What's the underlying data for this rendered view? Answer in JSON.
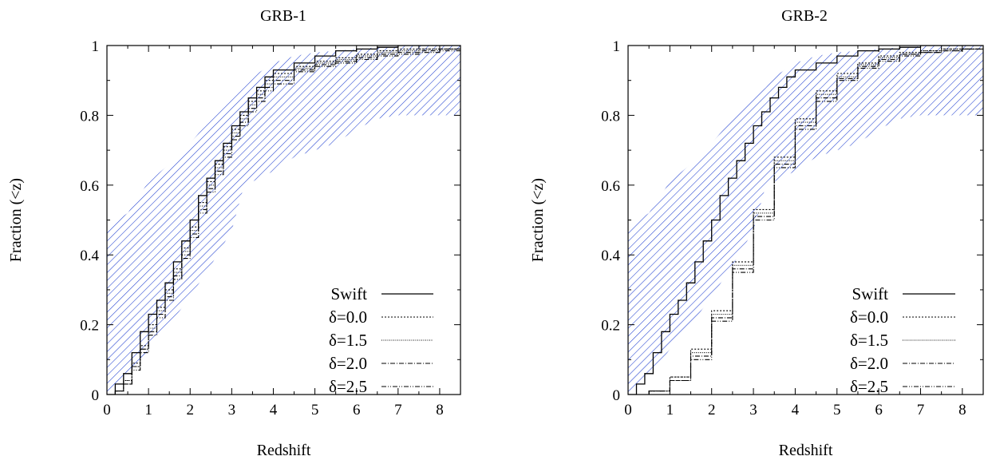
{
  "chart_data": [
    {
      "type": "line",
      "title": "GRB-1",
      "xlabel": "Redshift",
      "ylabel": "Fraction (<z)",
      "xlim": [
        0,
        8.5
      ],
      "ylim": [
        0,
        1
      ],
      "xticks": [
        "0",
        "1",
        "2",
        "3",
        "4",
        "5",
        "6",
        "7",
        "8"
      ],
      "yticks": [
        "0",
        "0.2",
        "0.4",
        "0.6",
        "0.8",
        "1"
      ],
      "grid": false,
      "legend": "bottom-right",
      "band": {
        "description": "hatched confidence region",
        "color": "#1f3fd0",
        "x": [
          0,
          0.5,
          1.0,
          1.5,
          2.0,
          2.5,
          3.0,
          3.3,
          3.5,
          4.0,
          4.5,
          5.0,
          5.5,
          6.0,
          6.5,
          7.0,
          7.5,
          8.0,
          8.5
        ],
        "upper": [
          0.48,
          0.52,
          0.61,
          0.66,
          0.72,
          0.79,
          0.85,
          0.88,
          0.91,
          0.95,
          0.97,
          0.98,
          0.985,
          0.99,
          0.995,
          0.998,
          1.0,
          1.0,
          1.0
        ],
        "lower": [
          0.0,
          0.05,
          0.13,
          0.2,
          0.28,
          0.37,
          0.47,
          0.6,
          0.61,
          0.64,
          0.68,
          0.7,
          0.72,
          0.76,
          0.79,
          0.8,
          0.8,
          0.8,
          0.8
        ]
      },
      "series": [
        {
          "name": "Swift",
          "dash": "",
          "x": [
            0,
            0.2,
            0.4,
            0.6,
            0.8,
            1.0,
            1.2,
            1.4,
            1.6,
            1.8,
            2.0,
            2.2,
            2.4,
            2.6,
            2.8,
            3.0,
            3.2,
            3.4,
            3.6,
            3.8,
            4.0,
            4.5,
            5.0,
            5.5,
            6.0,
            6.5,
            7.0,
            8.0,
            8.5
          ],
          "y": [
            0.0,
            0.03,
            0.06,
            0.12,
            0.18,
            0.23,
            0.27,
            0.32,
            0.38,
            0.44,
            0.5,
            0.57,
            0.62,
            0.67,
            0.72,
            0.77,
            0.81,
            0.85,
            0.88,
            0.91,
            0.93,
            0.95,
            0.97,
            0.985,
            0.99,
            0.995,
            1.0,
            1.0,
            1.0
          ]
        },
        {
          "name": "δ=0.0",
          "dash": "2 2",
          "x": [
            0,
            0.2,
            0.4,
            0.6,
            0.8,
            1.0,
            1.2,
            1.4,
            1.6,
            1.8,
            2.0,
            2.2,
            2.4,
            2.6,
            2.8,
            3.0,
            3.2,
            3.4,
            3.6,
            3.8,
            4.0,
            4.5,
            5.0,
            5.5,
            6.0,
            6.5,
            7.0,
            7.5,
            8.0,
            8.5
          ],
          "y": [
            0.0,
            0.01,
            0.04,
            0.09,
            0.14,
            0.2,
            0.25,
            0.3,
            0.36,
            0.42,
            0.48,
            0.55,
            0.61,
            0.66,
            0.71,
            0.76,
            0.8,
            0.84,
            0.87,
            0.9,
            0.92,
            0.94,
            0.955,
            0.965,
            0.975,
            0.985,
            0.99,
            0.99,
            0.99,
            0.99
          ]
        },
        {
          "name": "δ=1.5",
          "dash": "1 1.5",
          "x": [
            0,
            0.2,
            0.4,
            0.6,
            0.8,
            1.0,
            1.2,
            1.4,
            1.6,
            1.8,
            2.0,
            2.2,
            2.4,
            2.6,
            2.8,
            3.0,
            3.2,
            3.4,
            3.6,
            3.8,
            4.0,
            4.5,
            5.0,
            5.5,
            6.0,
            6.5,
            7.0,
            7.5,
            8.0,
            8.5
          ],
          "y": [
            0.0,
            0.01,
            0.04,
            0.08,
            0.13,
            0.19,
            0.24,
            0.29,
            0.35,
            0.41,
            0.47,
            0.54,
            0.6,
            0.65,
            0.7,
            0.75,
            0.79,
            0.83,
            0.86,
            0.89,
            0.91,
            0.935,
            0.95,
            0.96,
            0.97,
            0.98,
            0.985,
            0.99,
            0.99,
            0.99
          ]
        },
        {
          "name": "δ=2.0",
          "dash": "6 2 1 2",
          "x": [
            0,
            0.2,
            0.4,
            0.6,
            0.8,
            1.0,
            1.2,
            1.4,
            1.6,
            1.8,
            2.0,
            2.2,
            2.4,
            2.6,
            2.8,
            3.0,
            3.2,
            3.4,
            3.6,
            3.8,
            4.0,
            4.5,
            5.0,
            5.5,
            6.0,
            6.5,
            7.0,
            7.5,
            8.0,
            8.5
          ],
          "y": [
            0.0,
            0.01,
            0.03,
            0.08,
            0.13,
            0.18,
            0.23,
            0.28,
            0.34,
            0.4,
            0.46,
            0.53,
            0.59,
            0.64,
            0.69,
            0.74,
            0.78,
            0.82,
            0.85,
            0.88,
            0.9,
            0.93,
            0.945,
            0.955,
            0.965,
            0.975,
            0.98,
            0.985,
            0.99,
            0.99
          ]
        },
        {
          "name": "δ=2.5",
          "dash": "6 2 1 2 1 2",
          "x": [
            0,
            0.2,
            0.4,
            0.6,
            0.8,
            1.0,
            1.2,
            1.4,
            1.6,
            1.8,
            2.0,
            2.2,
            2.4,
            2.6,
            2.8,
            3.0,
            3.2,
            3.4,
            3.6,
            3.8,
            4.0,
            4.5,
            5.0,
            5.5,
            6.0,
            6.5,
            7.0,
            7.5,
            8.0,
            8.5
          ],
          "y": [
            0.0,
            0.01,
            0.03,
            0.07,
            0.12,
            0.17,
            0.22,
            0.27,
            0.33,
            0.39,
            0.45,
            0.52,
            0.58,
            0.63,
            0.68,
            0.73,
            0.77,
            0.81,
            0.84,
            0.87,
            0.89,
            0.925,
            0.94,
            0.95,
            0.96,
            0.97,
            0.975,
            0.98,
            0.985,
            0.99
          ]
        }
      ]
    },
    {
      "type": "line",
      "title": "GRB-2",
      "xlabel": "Redshift",
      "ylabel": "Fraction (<z)",
      "xlim": [
        0,
        8.5
      ],
      "ylim": [
        0,
        1
      ],
      "xticks": [
        "0",
        "1",
        "2",
        "3",
        "4",
        "5",
        "6",
        "7",
        "8"
      ],
      "yticks": [
        "0",
        "0.2",
        "0.4",
        "0.6",
        "0.8",
        "1"
      ],
      "grid": false,
      "legend": "bottom-right",
      "band": {
        "description": "hatched confidence region",
        "color": "#1f3fd0",
        "x": [
          0,
          0.5,
          1.0,
          1.5,
          2.0,
          2.5,
          3.0,
          3.3,
          3.5,
          4.0,
          4.5,
          5.0,
          5.5,
          6.0,
          6.5,
          7.0,
          7.5,
          8.0,
          8.5
        ],
        "upper": [
          0.48,
          0.52,
          0.61,
          0.66,
          0.72,
          0.79,
          0.85,
          0.88,
          0.91,
          0.95,
          0.97,
          0.98,
          0.985,
          0.99,
          0.995,
          0.998,
          1.0,
          1.0,
          1.0
        ],
        "lower": [
          0.0,
          0.05,
          0.13,
          0.2,
          0.28,
          0.37,
          0.47,
          0.6,
          0.61,
          0.64,
          0.68,
          0.7,
          0.72,
          0.76,
          0.79,
          0.8,
          0.8,
          0.8,
          0.8
        ]
      },
      "series": [
        {
          "name": "Swift",
          "dash": "",
          "x": [
            0,
            0.2,
            0.4,
            0.6,
            0.8,
            1.0,
            1.2,
            1.4,
            1.6,
            1.8,
            2.0,
            2.2,
            2.4,
            2.6,
            2.8,
            3.0,
            3.2,
            3.4,
            3.6,
            3.8,
            4.0,
            4.5,
            5.0,
            5.5,
            6.0,
            6.5,
            7.0,
            8.0,
            8.5
          ],
          "y": [
            0.0,
            0.03,
            0.06,
            0.12,
            0.18,
            0.23,
            0.27,
            0.32,
            0.38,
            0.44,
            0.5,
            0.57,
            0.62,
            0.67,
            0.72,
            0.77,
            0.81,
            0.85,
            0.88,
            0.91,
            0.93,
            0.95,
            0.97,
            0.985,
            0.99,
            0.995,
            1.0,
            1.0,
            1.0
          ]
        },
        {
          "name": "δ=0.0",
          "dash": "2 2",
          "x": [
            0,
            0.5,
            1.0,
            1.5,
            2.0,
            2.5,
            3.0,
            3.5,
            4.0,
            4.5,
            5.0,
            5.5,
            6.0,
            6.5,
            7.0,
            7.5,
            8.0,
            8.5
          ],
          "y": [
            0.0,
            0.01,
            0.05,
            0.13,
            0.24,
            0.38,
            0.53,
            0.68,
            0.79,
            0.87,
            0.92,
            0.95,
            0.97,
            0.98,
            0.985,
            0.99,
            0.99,
            0.99
          ]
        },
        {
          "name": "δ=1.5",
          "dash": "1 1.5",
          "x": [
            0,
            0.5,
            1.0,
            1.5,
            2.0,
            2.5,
            3.0,
            3.5,
            4.0,
            4.5,
            5.0,
            5.5,
            6.0,
            6.5,
            7.0,
            7.5,
            8.0,
            8.5
          ],
          "y": [
            0.0,
            0.01,
            0.05,
            0.12,
            0.23,
            0.37,
            0.52,
            0.67,
            0.78,
            0.86,
            0.91,
            0.945,
            0.965,
            0.975,
            0.985,
            0.99,
            0.99,
            0.99
          ]
        },
        {
          "name": "δ=2.0",
          "dash": "6 2 1 2",
          "x": [
            0,
            0.5,
            1.0,
            1.5,
            2.0,
            2.5,
            3.0,
            3.5,
            4.0,
            4.5,
            5.0,
            5.5,
            6.0,
            6.5,
            7.0,
            7.5,
            8.0,
            8.5
          ],
          "y": [
            0.0,
            0.01,
            0.04,
            0.11,
            0.22,
            0.36,
            0.51,
            0.66,
            0.77,
            0.85,
            0.905,
            0.94,
            0.96,
            0.975,
            0.98,
            0.985,
            0.99,
            0.99
          ]
        },
        {
          "name": "δ=2.5",
          "dash": "6 2 1 2 1 2",
          "x": [
            0,
            0.5,
            1.0,
            1.5,
            2.0,
            2.5,
            3.0,
            3.5,
            4.0,
            4.5,
            5.0,
            5.5,
            6.0,
            6.5,
            7.0,
            7.5,
            8.0,
            8.5
          ],
          "y": [
            0.0,
            0.01,
            0.04,
            0.1,
            0.21,
            0.35,
            0.5,
            0.65,
            0.76,
            0.84,
            0.9,
            0.935,
            0.955,
            0.97,
            0.98,
            0.985,
            0.99,
            0.99
          ]
        }
      ]
    }
  ]
}
